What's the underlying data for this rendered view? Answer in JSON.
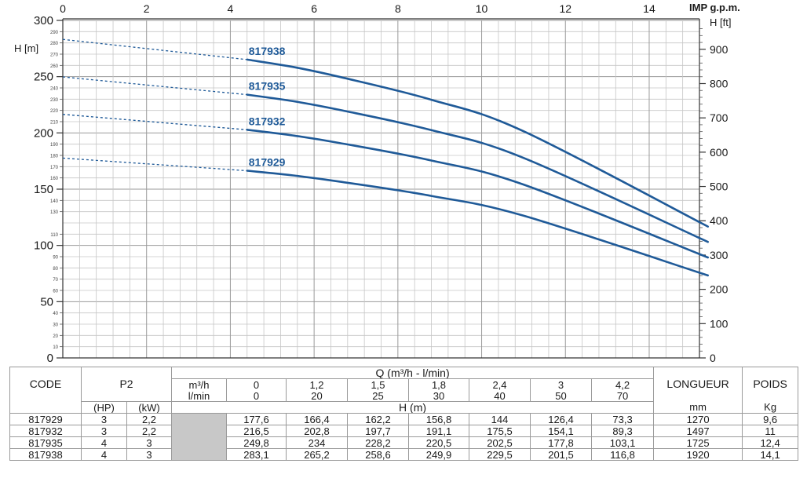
{
  "chart_data": {
    "type": "line",
    "x_label": "IMP g.p.m.",
    "y_left_label": "H [m]",
    "y_right_label": "H [ft]",
    "x_range": [
      0,
      15.2
    ],
    "y_range": [
      0,
      300
    ],
    "x_ticks": [
      "0",
      "2",
      "4",
      "6",
      "8",
      "10",
      "12",
      "14"
    ],
    "y_left_major_ticks": [
      "0",
      "50",
      "100",
      "150",
      "200",
      "250",
      "300"
    ],
    "y_left_minor_ticks": [
      "10",
      "20",
      "30",
      "40",
      "60",
      "70",
      "80",
      "90",
      "110",
      "130",
      "140",
      "160",
      "170",
      "180",
      "190",
      "210",
      "220",
      "230",
      "240",
      "260",
      "270",
      "280",
      "290"
    ],
    "y_right_ticks": [
      "0",
      "100",
      "200",
      "300",
      "400",
      "500",
      "600",
      "700",
      "800",
      "900"
    ],
    "grid": true,
    "line_color": "#1f5a98",
    "series": [
      {
        "name": "817929",
        "x": [
          0,
          4.4,
          5.5,
          6.6,
          8.8,
          11,
          15.4
        ],
        "y": [
          177.6,
          166.4,
          162.2,
          156.8,
          144,
          126.4,
          73.3
        ]
      },
      {
        "name": "817932",
        "x": [
          0,
          4.4,
          5.5,
          6.6,
          8.8,
          11,
          15.4
        ],
        "y": [
          216.5,
          202.8,
          197.7,
          191.1,
          175.5,
          154.1,
          89.3
        ]
      },
      {
        "name": "817935",
        "x": [
          0,
          4.4,
          5.5,
          6.6,
          8.8,
          11,
          15.4
        ],
        "y": [
          249.8,
          234,
          228.2,
          220.5,
          202.5,
          177.8,
          103.1
        ]
      },
      {
        "name": "817938",
        "x": [
          0,
          4.4,
          5.5,
          6.6,
          8.8,
          11,
          15.4
        ],
        "y": [
          283.1,
          265.2,
          258.6,
          249.9,
          229.5,
          201.5,
          116.8
        ]
      }
    ]
  },
  "table": {
    "code_header": "CODE",
    "p2_header": "P2",
    "q_header": "Q (m³/h - l/min)",
    "unit_m3h": "m³/h",
    "unit_lmin": "l/min",
    "flow_m3h": [
      "0",
      "1,2",
      "1,5",
      "1,8",
      "2,4",
      "3",
      "4,2"
    ],
    "flow_lmin": [
      "0",
      "20",
      "25",
      "30",
      "40",
      "50",
      "70"
    ],
    "hp_label": "(HP)",
    "kw_label": "(kW)",
    "h_label": "H (m)",
    "length_header": "LONGUEUR",
    "length_unit": "mm",
    "weight_header": "POIDS",
    "weight_unit": "Kg",
    "rows": [
      {
        "code": "817929",
        "hp": "3",
        "kw": "2,2",
        "h": [
          "177,6",
          "166,4",
          "162,2",
          "156,8",
          "144",
          "126,4",
          "73,3"
        ],
        "length": "1270",
        "weight": "9,6"
      },
      {
        "code": "817932",
        "hp": "3",
        "kw": "2,2",
        "h": [
          "216,5",
          "202,8",
          "197,7",
          "191,1",
          "175,5",
          "154,1",
          "89,3"
        ],
        "length": "1497",
        "weight": "11"
      },
      {
        "code": "817935",
        "hp": "4",
        "kw": "3",
        "h": [
          "249,8",
          "234",
          "228,2",
          "220,5",
          "202,5",
          "177,8",
          "103,1"
        ],
        "length": "1725",
        "weight": "12,4"
      },
      {
        "code": "817938",
        "hp": "4",
        "kw": "3",
        "h": [
          "283,1",
          "265,2",
          "258,6",
          "249,9",
          "229,5",
          "201,5",
          "116,8"
        ],
        "length": "1920",
        "weight": "14,1"
      }
    ]
  }
}
